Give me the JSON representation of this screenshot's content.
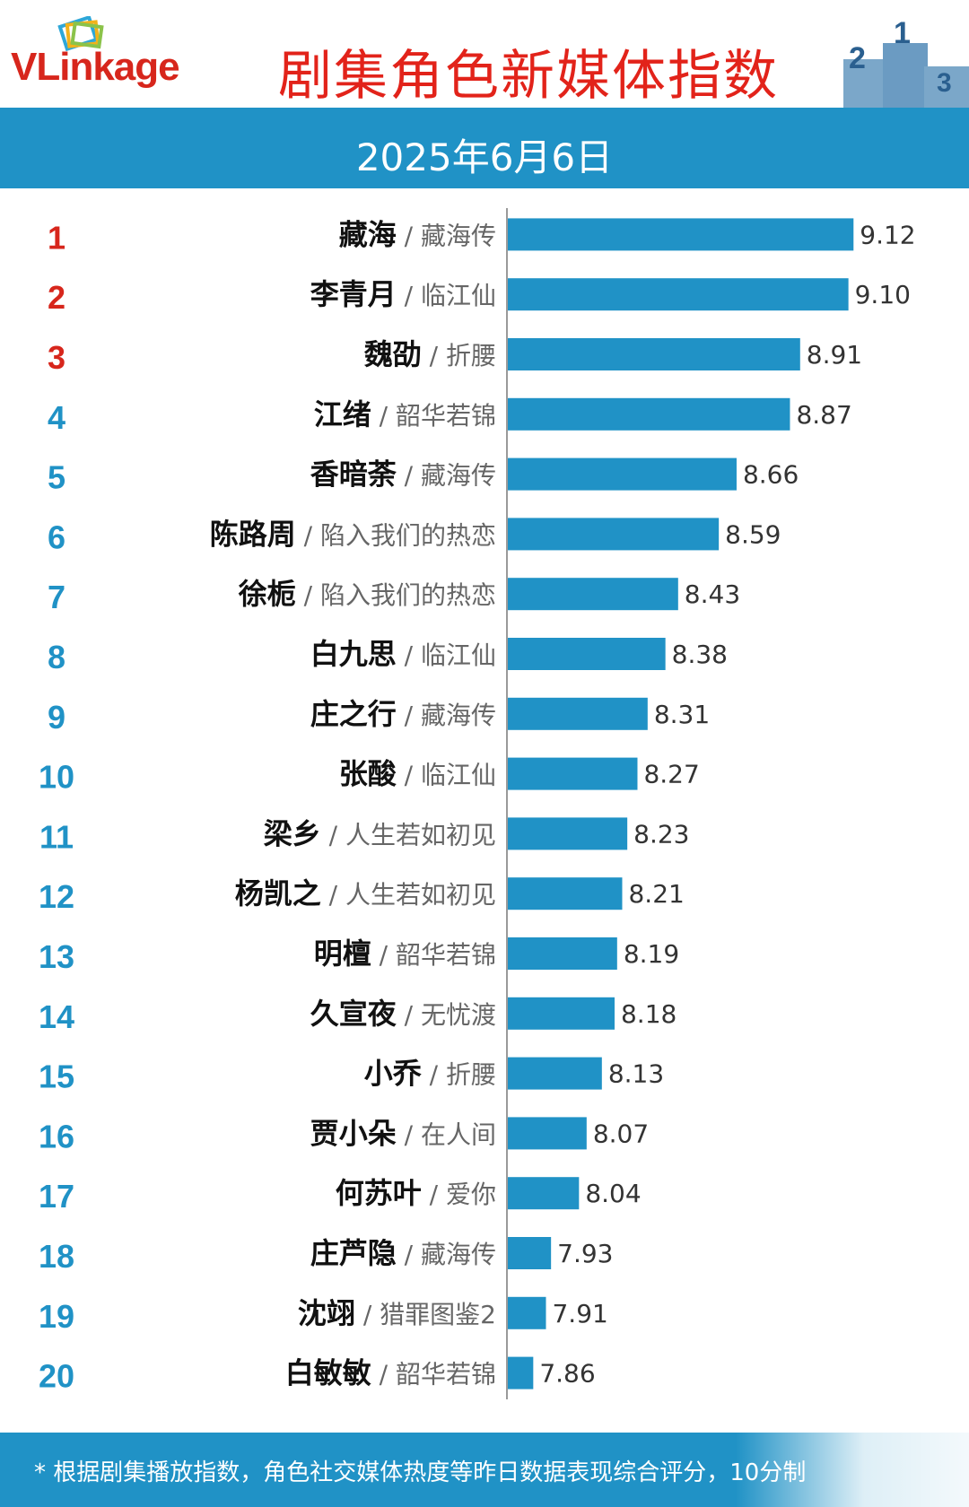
{
  "header": {
    "logo_text": "VLinkage",
    "title": "剧集角色新媒体指数",
    "podium_numbers": [
      "2",
      "1",
      "3"
    ]
  },
  "date_band": {
    "date": "2025年6月6日"
  },
  "footer": {
    "note": "* 根据剧集播放指数，角色社交媒体热度等昨日数据表现综合评分，10分制"
  },
  "colors": {
    "bar": "#2092c6",
    "rank_top3": "#d7261c",
    "rank_other": "#2092c6",
    "title": "#e2231a"
  },
  "chart_data": {
    "type": "bar",
    "orientation": "horizontal",
    "title": "剧集角色新媒体指数",
    "xlim": [
      0,
      10
    ],
    "grid": false,
    "legend": "none",
    "rows": [
      {
        "rank": "1",
        "character": "藏海",
        "drama": "藏海传",
        "value": 9.12,
        "label": "9.12"
      },
      {
        "rank": "2",
        "character": "李青月",
        "drama": "临江仙",
        "value": 9.1,
        "label": "9.10"
      },
      {
        "rank": "3",
        "character": "魏劭",
        "drama": "折腰",
        "value": 8.91,
        "label": "8.91"
      },
      {
        "rank": "4",
        "character": "江绪",
        "drama": "韶华若锦",
        "value": 8.87,
        "label": "8.87"
      },
      {
        "rank": "5",
        "character": "香暗荼",
        "drama": "藏海传",
        "value": 8.66,
        "label": "8.66"
      },
      {
        "rank": "6",
        "character": "陈路周",
        "drama": "陷入我们的热恋",
        "value": 8.59,
        "label": "8.59"
      },
      {
        "rank": "7",
        "character": "徐栀",
        "drama": "陷入我们的热恋",
        "value": 8.43,
        "label": "8.43"
      },
      {
        "rank": "8",
        "character": "白九思",
        "drama": "临江仙",
        "value": 8.38,
        "label": "8.38"
      },
      {
        "rank": "9",
        "character": "庄之行",
        "drama": "藏海传",
        "value": 8.31,
        "label": "8.31"
      },
      {
        "rank": "10",
        "character": "张酸",
        "drama": "临江仙",
        "value": 8.27,
        "label": "8.27"
      },
      {
        "rank": "11",
        "character": "梁乡",
        "drama": "人生若如初见",
        "value": 8.23,
        "label": "8.23"
      },
      {
        "rank": "12",
        "character": "杨凯之",
        "drama": "人生若如初见",
        "value": 8.21,
        "label": "8.21"
      },
      {
        "rank": "13",
        "character": "明檀",
        "drama": "韶华若锦",
        "value": 8.19,
        "label": "8.19"
      },
      {
        "rank": "14",
        "character": "久宣夜",
        "drama": "无忧渡",
        "value": 8.18,
        "label": "8.18"
      },
      {
        "rank": "15",
        "character": "小乔",
        "drama": "折腰",
        "value": 8.13,
        "label": "8.13"
      },
      {
        "rank": "16",
        "character": "贾小朵",
        "drama": "在人间",
        "value": 8.07,
        "label": "8.07"
      },
      {
        "rank": "17",
        "character": "何苏叶",
        "drama": "爱你",
        "value": 8.04,
        "label": "8.04"
      },
      {
        "rank": "18",
        "character": "庄芦隐",
        "drama": "藏海传",
        "value": 7.93,
        "label": "7.93"
      },
      {
        "rank": "19",
        "character": "沈翊",
        "drama": "猎罪图鉴2",
        "value": 7.91,
        "label": "7.91"
      },
      {
        "rank": "20",
        "character": "白敏敏",
        "drama": "韶华若锦",
        "value": 7.86,
        "label": "7.86"
      }
    ]
  }
}
